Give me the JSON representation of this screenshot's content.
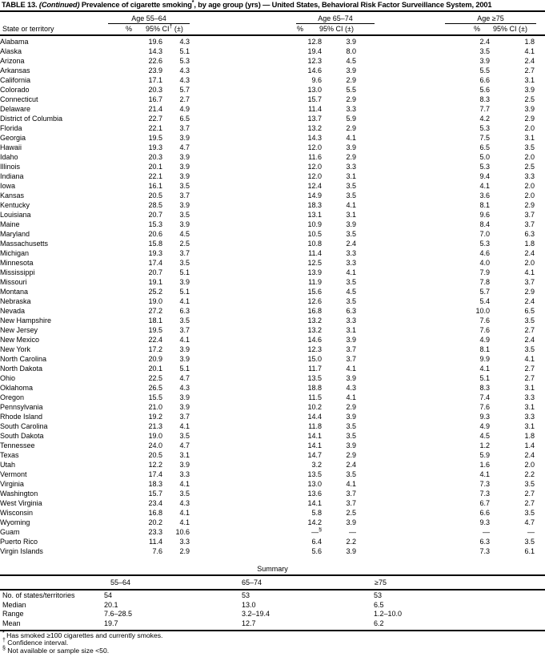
{
  "title": {
    "prefix": "TABLE 13. ",
    "continued": "(Continued)",
    "rest": " Prevalence of cigarette smoking*, by age group (yrs) — United States, Behavioral Risk Factor Surveillance System, 2001"
  },
  "table": {
    "group_headers": [
      "Age 55–64",
      "Age 65–74",
      "Age ≥75"
    ],
    "col_headers": {
      "state": "State or territory",
      "pct": "%",
      "ci_first": "95% CI† (±)",
      "ci": "95% CI (±)"
    },
    "rows": [
      [
        "Alabama",
        "19.6",
        "4.3",
        "12.8",
        "3.9",
        "2.4",
        "1.8"
      ],
      [
        "Alaska",
        "14.3",
        "5.1",
        "19.4",
        "8.0",
        "3.5",
        "4.1"
      ],
      [
        "Arizona",
        "22.6",
        "5.3",
        "12.3",
        "4.5",
        "3.9",
        "2.4"
      ],
      [
        "Arkansas",
        "23.9",
        "4.3",
        "14.6",
        "3.9",
        "5.5",
        "2.7"
      ],
      [
        "California",
        "17.1",
        "4.3",
        "9.6",
        "2.9",
        "6.6",
        "3.1"
      ],
      [
        "Colorado",
        "20.3",
        "5.7",
        "13.0",
        "5.5",
        "5.6",
        "3.9"
      ],
      [
        "Connecticut",
        "16.7",
        "2.7",
        "15.7",
        "2.9",
        "8.3",
        "2.5"
      ],
      [
        "Delaware",
        "21.4",
        "4.9",
        "11.4",
        "3.3",
        "7.7",
        "3.9"
      ],
      [
        "District of Columbia",
        "22.7",
        "6.5",
        "13.7",
        "5.9",
        "4.2",
        "2.9"
      ],
      [
        "Florida",
        "22.1",
        "3.7",
        "13.2",
        "2.9",
        "5.3",
        "2.0"
      ],
      [
        "Georgia",
        "19.5",
        "3.9",
        "14.3",
        "4.1",
        "7.5",
        "3.1"
      ],
      [
        "Hawaii",
        "19.3",
        "4.7",
        "12.0",
        "3.9",
        "6.5",
        "3.5"
      ],
      [
        "Idaho",
        "20.3",
        "3.9",
        "11.6",
        "2.9",
        "5.0",
        "2.0"
      ],
      [
        "Illinois",
        "20.1",
        "3.9",
        "12.0",
        "3.3",
        "5.3",
        "2.5"
      ],
      [
        "Indiana",
        "22.1",
        "3.9",
        "12.0",
        "3.1",
        "9.4",
        "3.3"
      ],
      [
        "Iowa",
        "16.1",
        "3.5",
        "12.4",
        "3.5",
        "4.1",
        "2.0"
      ],
      [
        "Kansas",
        "20.5",
        "3.7",
        "14.9",
        "3.5",
        "3.6",
        "2.0"
      ],
      [
        "Kentucky",
        "28.5",
        "3.9",
        "18.3",
        "4.1",
        "8.1",
        "2.9"
      ],
      [
        "Louisiana",
        "20.7",
        "3.5",
        "13.1",
        "3.1",
        "9.6",
        "3.7"
      ],
      [
        "Maine",
        "15.3",
        "3.9",
        "10.9",
        "3.9",
        "8.4",
        "3.7"
      ],
      [
        "Maryland",
        "20.6",
        "4.5",
        "10.5",
        "3.5",
        "7.0",
        "6.3"
      ],
      [
        "Massachusetts",
        "15.8",
        "2.5",
        "10.8",
        "2.4",
        "5.3",
        "1.8"
      ],
      [
        "Michigan",
        "19.3",
        "3.7",
        "11.4",
        "3.3",
        "4.6",
        "2.4"
      ],
      [
        "Minnesota",
        "17.4",
        "3.5",
        "12.5",
        "3.3",
        "4.0",
        "2.0"
      ],
      [
        "Mississippi",
        "20.7",
        "5.1",
        "13.9",
        "4.1",
        "7.9",
        "4.1"
      ],
      [
        "Missouri",
        "19.1",
        "3.9",
        "11.9",
        "3.5",
        "7.8",
        "3.7"
      ],
      [
        "Montana",
        "25.2",
        "5.1",
        "15.6",
        "4.5",
        "5.7",
        "2.9"
      ],
      [
        "Nebraska",
        "19.0",
        "4.1",
        "12.6",
        "3.5",
        "5.4",
        "2.4"
      ],
      [
        "Nevada",
        "27.2",
        "6.3",
        "16.8",
        "6.3",
        "10.0",
        "6.5"
      ],
      [
        "New Hampshire",
        "18.1",
        "3.5",
        "13.2",
        "3.3",
        "7.6",
        "3.5"
      ],
      [
        "New Jersey",
        "19.5",
        "3.7",
        "13.2",
        "3.1",
        "7.6",
        "2.7"
      ],
      [
        "New Mexico",
        "22.4",
        "4.1",
        "14.6",
        "3.9",
        "4.9",
        "2.4"
      ],
      [
        "New York",
        "17.2",
        "3.9",
        "12.3",
        "3.7",
        "8.1",
        "3.5"
      ],
      [
        "North Carolina",
        "20.9",
        "3.9",
        "15.0",
        "3.7",
        "9.9",
        "4.1"
      ],
      [
        "North Dakota",
        "20.1",
        "5.1",
        "11.7",
        "4.1",
        "4.1",
        "2.7"
      ],
      [
        "Ohio",
        "22.5",
        "4.7",
        "13.5",
        "3.9",
        "5.1",
        "2.7"
      ],
      [
        "Oklahoma",
        "26.5",
        "4.3",
        "18.8",
        "4.3",
        "8.3",
        "3.1"
      ],
      [
        "Oregon",
        "15.5",
        "3.9",
        "11.5",
        "4.1",
        "7.4",
        "3.3"
      ],
      [
        "Pennsylvania",
        "21.0",
        "3.9",
        "10.2",
        "2.9",
        "7.6",
        "3.1"
      ],
      [
        "Rhode Island",
        "19.2",
        "3.7",
        "14.4",
        "3.9",
        "9.3",
        "3.3"
      ],
      [
        "South Carolina",
        "21.3",
        "4.1",
        "11.8",
        "3.5",
        "4.9",
        "3.1"
      ],
      [
        "South Dakota",
        "19.0",
        "3.5",
        "14.1",
        "3.5",
        "4.5",
        "1.8"
      ],
      [
        "Tennessee",
        "24.0",
        "4.7",
        "14.1",
        "3.9",
        "1.2",
        "1.4"
      ],
      [
        "Texas",
        "20.5",
        "3.1",
        "14.7",
        "2.9",
        "5.9",
        "2.4"
      ],
      [
        "Utah",
        "12.2",
        "3.9",
        "3.2",
        "2.4",
        "1.6",
        "2.0"
      ],
      [
        "Vermont",
        "17.4",
        "3.3",
        "13.5",
        "3.5",
        "4.1",
        "2.2"
      ],
      [
        "Virginia",
        "18.3",
        "4.1",
        "13.0",
        "4.1",
        "7.3",
        "3.5"
      ],
      [
        "Washington",
        "15.7",
        "3.5",
        "13.6",
        "3.7",
        "7.3",
        "2.7"
      ],
      [
        "West Virginia",
        "23.4",
        "4.3",
        "14.1",
        "3.7",
        "6.7",
        "2.7"
      ],
      [
        "Wisconsin",
        "16.8",
        "4.1",
        "5.8",
        "2.5",
        "6.6",
        "3.5"
      ],
      [
        "Wyoming",
        "20.2",
        "4.1",
        "14.2",
        "3.9",
        "9.3",
        "4.7"
      ],
      [
        "Guam",
        "23.3",
        "10.6",
        "—§",
        "—",
        "—",
        "—"
      ],
      [
        "Puerto Rico",
        "11.4",
        "3.3",
        "6.4",
        "2.2",
        "6.3",
        "3.5"
      ],
      [
        "Virgin Islands",
        "7.6",
        "2.9",
        "5.6",
        "3.9",
        "7.3",
        "6.1"
      ]
    ]
  },
  "summary": {
    "heading": "Summary",
    "col_headers": [
      "55–64",
      "65–74",
      "≥75"
    ],
    "rows": [
      [
        "No. of states/territories",
        "54",
        "53",
        "53"
      ],
      [
        "Median",
        "20.1",
        "13.0",
        "6.5"
      ],
      [
        "Range",
        "7.6–28.5",
        "3.2–19.4",
        "1.2–10.0"
      ],
      [
        "Mean",
        "19.7",
        "12.7",
        "6.2"
      ]
    ]
  },
  "footnotes": [
    "* Has smoked ≥100 cigarettes and currently smokes.",
    "† Confidence interval.",
    "§ Not available or sample size <50."
  ]
}
